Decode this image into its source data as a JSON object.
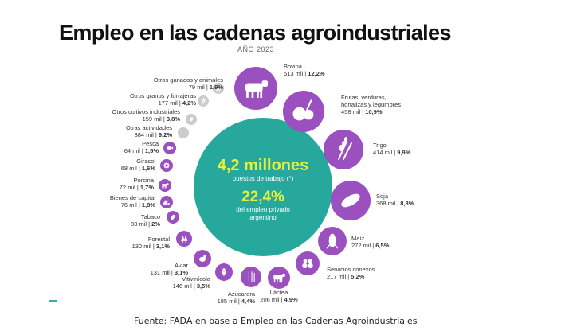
{
  "title": "Empleo en las cadenas agroindustriales",
  "subtitle": "AÑO 2023",
  "source": "Fuente: FADA en base a Empleo en las Cadenas Agroindustriales",
  "colors": {
    "purple": "#9b50c0",
    "teal": "#26a89c",
    "grey": "#cccccc",
    "highlight": "#e6ef3a",
    "text": "#333333"
  },
  "center": {
    "total": "4,2 millones",
    "total_label": "puestos de trabajo (*)",
    "share": "22,4%",
    "share_label_1": "del empleo privado",
    "share_label_2": "argentino"
  },
  "chart_data": {
    "type": "table",
    "title": "Empleo en las cadenas agroindustriales",
    "subtitle": "AÑO 2023",
    "unit": "miles de puestos de trabajo",
    "total": "4,2 millones",
    "share_private_employment": "22,4%",
    "chains": [
      {
        "name": "Bovina",
        "jobs": "513 mil",
        "pct": "12,2%",
        "value": 513,
        "icon": "cow-icon"
      },
      {
        "name": "Frutas, verduras, hortalizas y legumbres",
        "name_lines": [
          "Frutas, verduras,",
          "hortalizas y legumbres"
        ],
        "jobs": "458 mil",
        "pct": "10,9%",
        "value": 458,
        "icon": "fruit-icon"
      },
      {
        "name": "Trigo",
        "jobs": "414 mil",
        "pct": "9,9%",
        "value": 414,
        "icon": "wheat-icon"
      },
      {
        "name": "Soja",
        "jobs": "368 mil",
        "pct": "8,8%",
        "value": 368,
        "icon": "soy-icon"
      },
      {
        "name": "Maíz",
        "jobs": "272 mil",
        "pct": "6,5%",
        "value": 272,
        "icon": "corn-icon"
      },
      {
        "name": "Servicios conexos",
        "jobs": "217 mil",
        "pct": "5,2%",
        "value": 217,
        "icon": "people-icon"
      },
      {
        "name": "Láctea",
        "jobs": "206 mil",
        "pct": "4,9%",
        "value": 206,
        "icon": "dairy-cow-icon"
      },
      {
        "name": "Azucarera",
        "jobs": "185 mil",
        "pct": "4,4%",
        "value": 185,
        "icon": "sugarcane-icon"
      },
      {
        "name": "Vitivinícola",
        "jobs": "146 mil",
        "pct": "3,5%",
        "value": 146,
        "icon": "grape-icon"
      },
      {
        "name": "Aviar",
        "jobs": "131 mil",
        "pct": "3,1%",
        "value": 131,
        "icon": "chicken-icon"
      },
      {
        "name": "Forestal",
        "jobs": "130 mil",
        "pct": "3,1%",
        "value": 130,
        "icon": "tree-icon"
      },
      {
        "name": "Tabaco",
        "jobs": "83 mil",
        "pct": "2%",
        "value": 83,
        "icon": "tobacco-leaf-icon"
      },
      {
        "name": "Bienes de capital",
        "jobs": "76 mil",
        "pct": "1,8%",
        "value": 76,
        "icon": "tractor-icon"
      },
      {
        "name": "Porcina",
        "jobs": "72 mil",
        "pct": "1,7%",
        "value": 72,
        "icon": "pig-icon"
      },
      {
        "name": "Girasol",
        "jobs": "68 mil",
        "pct": "1,6%",
        "value": 68,
        "icon": "sunflower-icon"
      },
      {
        "name": "Pesca",
        "jobs": "64 mil",
        "pct": "1,5%",
        "value": 64,
        "icon": "fish-icon"
      },
      {
        "name": "Otras actividades",
        "jobs": "384 mil",
        "pct": "9,2%",
        "value": 384,
        "icon": "none"
      },
      {
        "name": "Otros cultivos industriales",
        "jobs": "159 mil",
        "pct": "3,8%",
        "value": 159,
        "icon": "plant-icon"
      },
      {
        "name": "Otros granos y forrajeras",
        "jobs": "177 mil",
        "pct": "4,2%",
        "value": 177,
        "icon": "grain-icon"
      },
      {
        "name": "Otros ganados y animales",
        "jobs": "79 mil",
        "pct": "1,9%",
        "value": 79,
        "icon": "sheep-icon"
      }
    ]
  }
}
